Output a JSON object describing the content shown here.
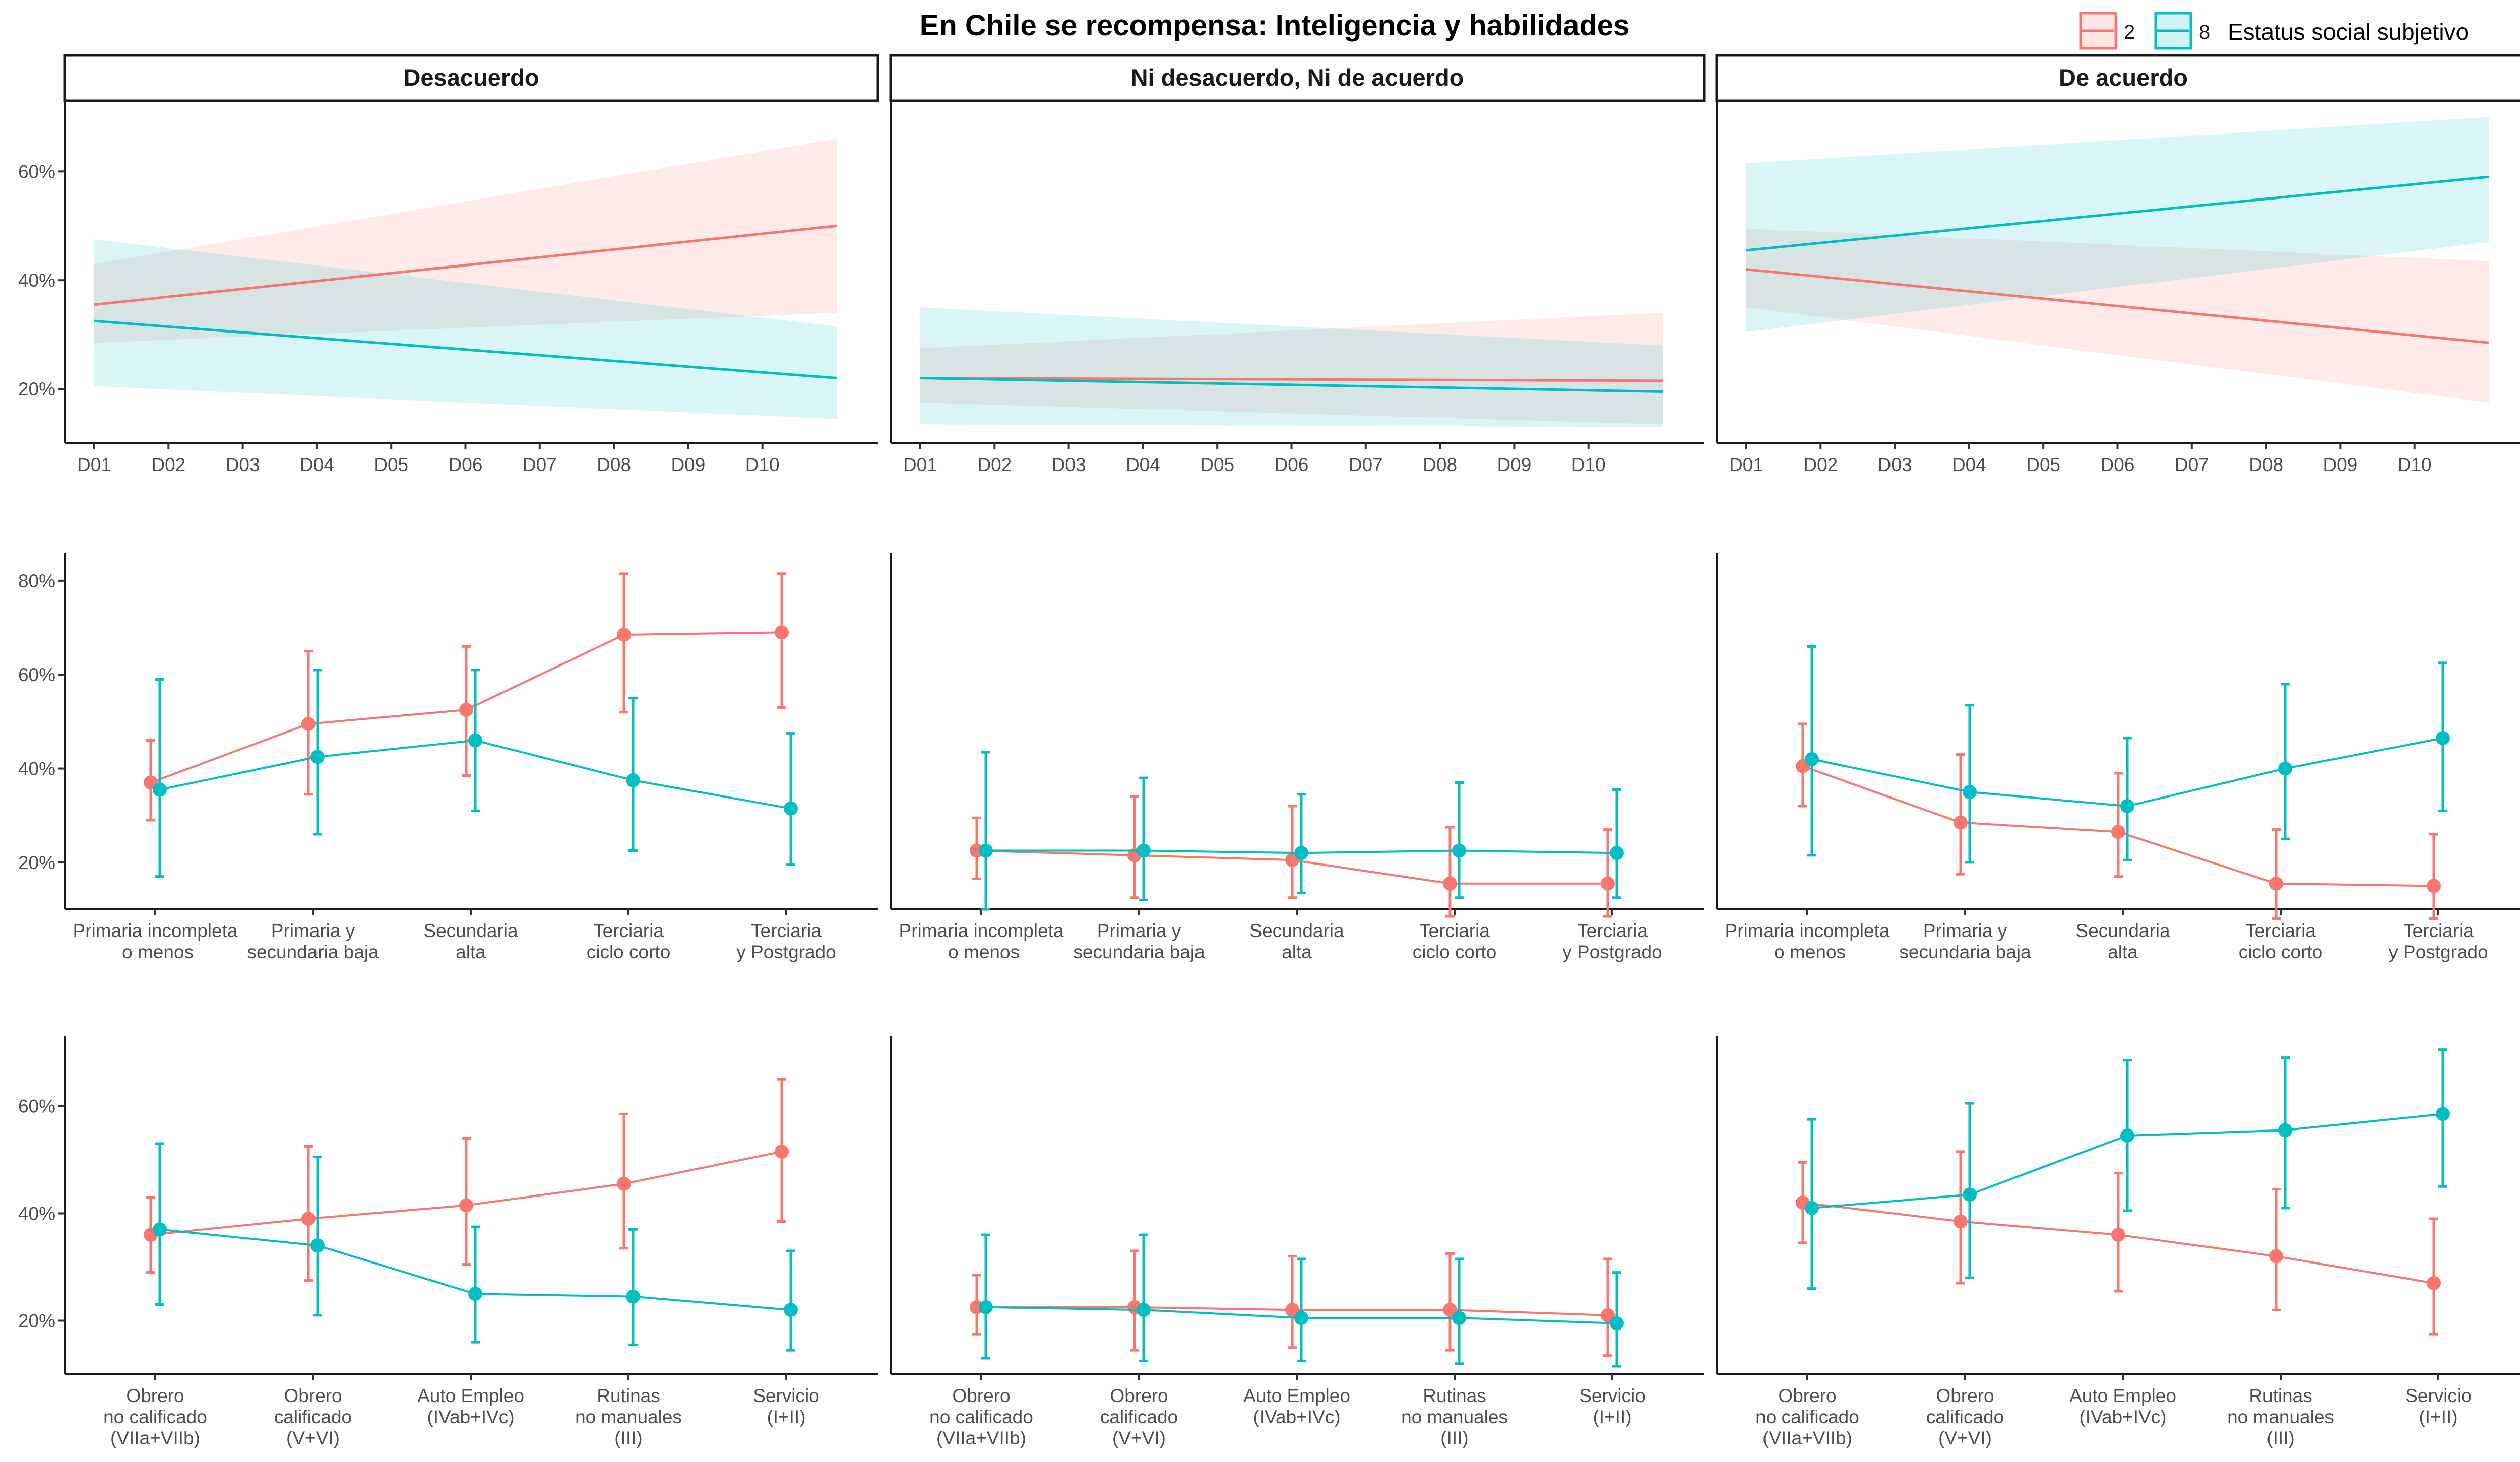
{
  "title": "En Chile se recompensa: Inteligencia y habilidades",
  "legend": {
    "title": "Estatus social subjetivo",
    "items": [
      {
        "label": "2",
        "color": "#F8766D"
      },
      {
        "label": "8",
        "color": "#00BFC4"
      }
    ],
    "placement": "top-right"
  },
  "facets": [
    "Desacuerdo",
    "Ni desacuerdo, Ni de acuerdo",
    "De acuerdo"
  ],
  "chart_data": [
    {
      "row": "decil",
      "type": "line",
      "x_categories": [
        "D01",
        "D02",
        "D03",
        "D04",
        "D05",
        "D06",
        "D07",
        "D08",
        "D09",
        "D10"
      ],
      "ylim": [
        10,
        73
      ],
      "y_ticks": [
        20,
        40,
        60
      ],
      "y_tick_labels": [
        "20%",
        "40%",
        "60%"
      ],
      "panels": [
        {
          "facet": "Desacuerdo",
          "series": [
            {
              "name": "2",
              "x": [
                1,
                11
              ],
              "y": [
                35.5,
                50.0
              ],
              "lower": [
                28.5,
                34.0
              ],
              "upper": [
                43.0,
                66.0
              ]
            },
            {
              "name": "8",
              "x": [
                1,
                11
              ],
              "y": [
                32.5,
                22.0
              ],
              "lower": [
                20.5,
                14.5
              ],
              "upper": [
                47.5,
                31.5
              ]
            }
          ]
        },
        {
          "facet": "Ni desacuerdo, Ni de acuerdo",
          "series": [
            {
              "name": "2",
              "x": [
                1,
                11
              ],
              "y": [
                22.0,
                21.5
              ],
              "lower": [
                17.5,
                13.5
              ],
              "upper": [
                27.5,
                34.0
              ]
            },
            {
              "name": "8",
              "x": [
                1,
                11
              ],
              "y": [
                22.0,
                19.5
              ],
              "lower": [
                13.5,
                13.0
              ],
              "upper": [
                35.0,
                28.0
              ]
            }
          ]
        },
        {
          "facet": "De acuerdo",
          "series": [
            {
              "name": "2",
              "x": [
                1,
                11
              ],
              "y": [
                42.0,
                28.5
              ],
              "lower": [
                35.0,
                17.5
              ],
              "upper": [
                49.5,
                43.5
              ]
            },
            {
              "name": "8",
              "x": [
                1,
                11
              ],
              "y": [
                45.5,
                59.0
              ],
              "lower": [
                30.5,
                47.0
              ],
              "upper": [
                61.5,
                70.0
              ]
            }
          ]
        }
      ]
    },
    {
      "row": "educacion",
      "type": "line",
      "x_categories": [
        "Primaria incompleta\n o  menos",
        "Primaria y\nsecundaria baja",
        "Secundaria\nalta",
        "Terciaria\nciclo corto",
        "Terciaria\ny Postgrado"
      ],
      "ylim": [
        10,
        86
      ],
      "y_ticks": [
        20,
        40,
        60,
        80
      ],
      "y_tick_labels": [
        "20%",
        "40%",
        "60%",
        "80%"
      ],
      "panels": [
        {
          "facet": "Desacuerdo",
          "series": [
            {
              "name": "2",
              "values": [
                37.0,
                49.5,
                52.5,
                68.5,
                69.0
              ],
              "lower": [
                29.0,
                34.5,
                38.5,
                52.0,
                53.0
              ],
              "upper": [
                46.0,
                65.0,
                66.0,
                81.5,
                81.5
              ]
            },
            {
              "name": "8",
              "values": [
                35.5,
                42.5,
                46.0,
                37.5,
                31.5
              ],
              "lower": [
                17.0,
                26.0,
                31.0,
                22.5,
                19.5
              ],
              "upper": [
                59.0,
                61.0,
                61.0,
                55.0,
                47.5
              ]
            }
          ]
        },
        {
          "facet": "Ni desacuerdo, Ni de acuerdo",
          "series": [
            {
              "name": "2",
              "values": [
                22.5,
                21.5,
                20.5,
                15.5,
                15.5
              ],
              "lower": [
                16.5,
                12.5,
                12.5,
                8.5,
                8.5
              ],
              "upper": [
                29.5,
                34.0,
                32.0,
                27.5,
                27.0
              ]
            },
            {
              "name": "8",
              "values": [
                22.5,
                22.5,
                22.0,
                22.5,
                22.0
              ],
              "lower": [
                10.0,
                12.0,
                13.5,
                12.5,
                12.5
              ],
              "upper": [
                43.5,
                38.0,
                34.5,
                37.0,
                35.5
              ]
            }
          ]
        },
        {
          "facet": "De acuerdo",
          "series": [
            {
              "name": "2",
              "values": [
                40.5,
                28.5,
                26.5,
                15.5,
                15.0
              ],
              "lower": [
                32.0,
                17.5,
                17.0,
                8.0,
                8.0
              ],
              "upper": [
                49.5,
                43.0,
                39.0,
                27.0,
                26.0
              ]
            },
            {
              "name": "8",
              "values": [
                42.0,
                35.0,
                32.0,
                40.0,
                46.5
              ],
              "lower": [
                21.5,
                20.0,
                20.5,
                25.0,
                31.0
              ],
              "upper": [
                66.0,
                53.5,
                46.5,
                58.0,
                62.5
              ]
            }
          ]
        }
      ]
    },
    {
      "row": "clase",
      "type": "line",
      "x_categories": [
        "Obrero\nno calificado\n(VIIa+VIIb)",
        "Obrero\ncalificado\n(V+VI)",
        "Auto Empleo\n(IVab+IVc)",
        "Rutinas\nno manuales\n(III)",
        "Servicio\n(I+II)"
      ],
      "ylim": [
        10,
        73
      ],
      "y_ticks": [
        20,
        40,
        60
      ],
      "y_tick_labels": [
        "20%",
        "40%",
        "60%"
      ],
      "panels": [
        {
          "facet": "Desacuerdo",
          "series": [
            {
              "name": "2",
              "values": [
                36.0,
                39.0,
                41.5,
                45.5,
                51.5
              ],
              "lower": [
                29.0,
                27.5,
                30.5,
                33.5,
                38.5
              ],
              "upper": [
                43.0,
                52.5,
                54.0,
                58.5,
                65.0
              ]
            },
            {
              "name": "8",
              "values": [
                37.0,
                34.0,
                25.0,
                24.5,
                22.0
              ],
              "lower": [
                23.0,
                21.0,
                16.0,
                15.5,
                14.5
              ],
              "upper": [
                53.0,
                50.5,
                37.5,
                37.0,
                33.0
              ]
            }
          ]
        },
        {
          "facet": "Ni desacuerdo, Ni de acuerdo",
          "series": [
            {
              "name": "2",
              "values": [
                22.5,
                22.5,
                22.0,
                22.0,
                21.0
              ],
              "lower": [
                17.5,
                14.5,
                15.0,
                14.5,
                13.5
              ],
              "upper": [
                28.5,
                33.0,
                32.0,
                32.5,
                31.5
              ]
            },
            {
              "name": "8",
              "values": [
                22.5,
                22.0,
                20.5,
                20.5,
                19.5
              ],
              "lower": [
                13.0,
                12.5,
                12.5,
                12.0,
                11.5
              ],
              "upper": [
                36.0,
                36.0,
                31.5,
                31.5,
                29.0
              ]
            }
          ]
        },
        {
          "facet": "De acuerdo",
          "series": [
            {
              "name": "2",
              "values": [
                42.0,
                38.5,
                36.0,
                32.0,
                27.0
              ],
              "lower": [
                34.5,
                27.0,
                25.5,
                22.0,
                17.5
              ],
              "upper": [
                49.5,
                51.5,
                47.5,
                44.5,
                39.0
              ]
            },
            {
              "name": "8",
              "values": [
                41.0,
                43.5,
                54.5,
                55.5,
                58.5
              ],
              "lower": [
                26.0,
                28.0,
                40.5,
                41.0,
                45.0
              ],
              "upper": [
                57.5,
                60.5,
                68.5,
                69.0,
                70.5
              ]
            }
          ]
        }
      ]
    }
  ]
}
